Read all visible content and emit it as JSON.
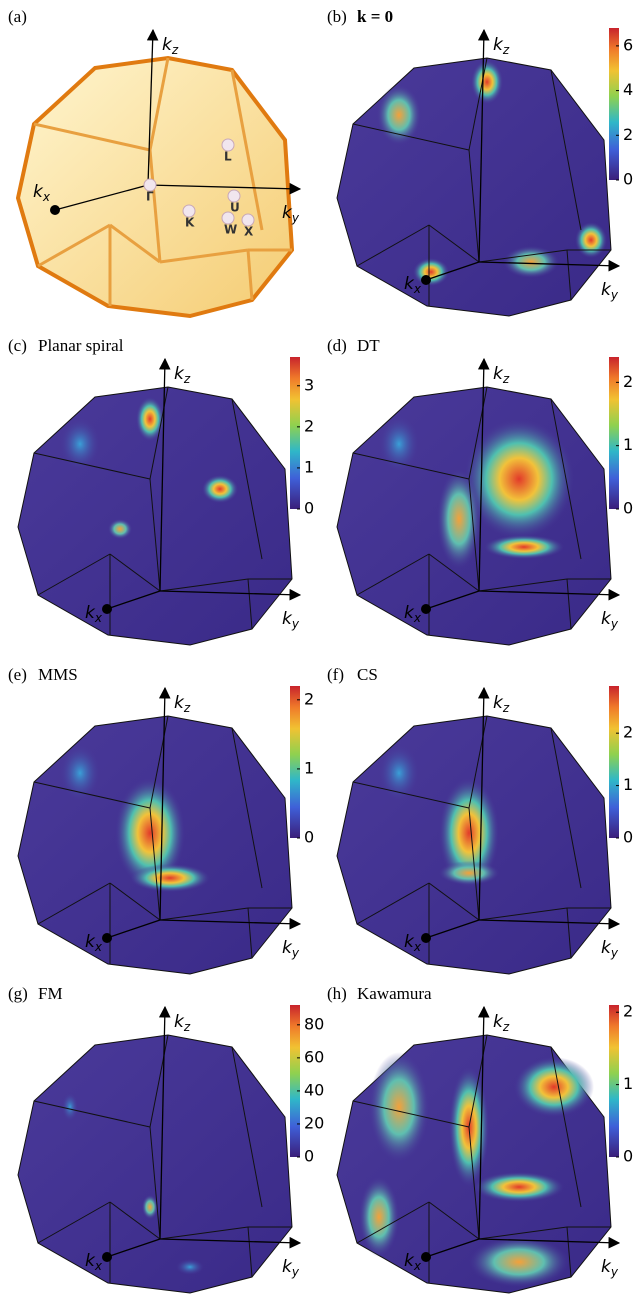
{
  "panels": [
    {
      "label": "(a)",
      "axes": {
        "z": {
          "base": "k",
          "sub": "z"
        },
        "x": {
          "base": "k",
          "sub": "x"
        },
        "y": {
          "base": "k",
          "sub": "y"
        }
      },
      "points": [
        "L",
        "U",
        "Γ",
        "K",
        "W",
        "X"
      ]
    },
    {
      "label": "(b)",
      "title": "k = 0",
      "axes": {
        "z": {
          "base": "k",
          "sub": "z"
        },
        "x": {
          "base": "k",
          "sub": "x"
        },
        "y": {
          "base": "k",
          "sub": "y"
        }
      },
      "colorbar": {
        "lim": [
          0,
          6.8
        ],
        "ticks": [
          0,
          2,
          4,
          6
        ]
      }
    },
    {
      "label": "(c)",
      "title": "Planar spiral",
      "axes": {
        "z": {
          "base": "k",
          "sub": "z"
        },
        "x": {
          "base": "k",
          "sub": "x"
        },
        "y": {
          "base": "k",
          "sub": "y"
        }
      },
      "colorbar": {
        "lim": [
          0,
          3.7
        ],
        "ticks": [
          0,
          1,
          2,
          3
        ]
      }
    },
    {
      "label": "(d)",
      "title": "DT",
      "axes": {
        "z": {
          "base": "k",
          "sub": "z"
        },
        "x": {
          "base": "k",
          "sub": "x"
        },
        "y": {
          "base": "k",
          "sub": "y"
        }
      },
      "colorbar": {
        "lim": [
          0,
          2.4
        ],
        "ticks": [
          0,
          1,
          2
        ]
      }
    },
    {
      "label": "(e)",
      "title": "MMS",
      "axes": {
        "z": {
          "base": "k",
          "sub": "z"
        },
        "x": {
          "base": "k",
          "sub": "x"
        },
        "y": {
          "base": "k",
          "sub": "y"
        }
      },
      "colorbar": {
        "lim": [
          0,
          2.2
        ],
        "ticks": [
          0,
          1,
          2
        ]
      }
    },
    {
      "label": "(f)",
      "title": "CS",
      "axes": {
        "z": {
          "base": "k",
          "sub": "z"
        },
        "x": {
          "base": "k",
          "sub": "x"
        },
        "y": {
          "base": "k",
          "sub": "y"
        }
      },
      "colorbar": {
        "lim": [
          0,
          2.9
        ],
        "ticks": [
          0,
          1,
          2
        ]
      }
    },
    {
      "label": "(g)",
      "title": "FM",
      "axes": {
        "z": {
          "base": "k",
          "sub": "z"
        },
        "x": {
          "base": "k",
          "sub": "x"
        },
        "y": {
          "base": "k",
          "sub": "y"
        }
      },
      "colorbar": {
        "lim": [
          0,
          92
        ],
        "ticks": [
          0,
          20,
          40,
          60,
          80
        ]
      }
    },
    {
      "label": "(h)",
      "title": "Kawamura",
      "axes": {
        "z": {
          "base": "k",
          "sub": "z"
        },
        "x": {
          "base": "k",
          "sub": "x"
        },
        "y": {
          "base": "k",
          "sub": "y"
        }
      },
      "colorbar": {
        "lim": [
          0,
          2.1
        ],
        "ticks": [
          0,
          1,
          2
        ]
      }
    }
  ]
}
